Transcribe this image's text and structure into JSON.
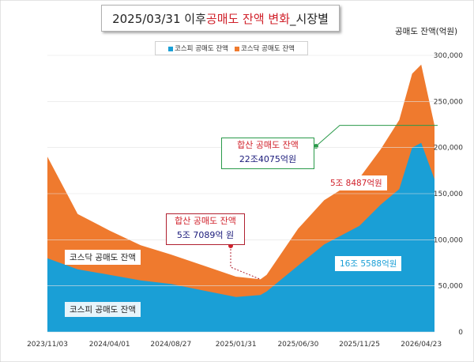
{
  "title": {
    "prefix": "2025/03/31 이후 ",
    "highlight": "공매도 잔액 변화",
    "suffix": "_시장별"
  },
  "unit_label": "공매도 잔액(억원)",
  "legend": [
    {
      "label": "코스피 공매도 잔액",
      "color": "#1a9fd6"
    },
    {
      "label": "코스닥 공매도 잔액",
      "color": "#ef7a2e"
    }
  ],
  "labels": {
    "kosdaq_area": "코스닥 공매도 잔액",
    "kospi_area": "코스피 공매도 잔액",
    "kosdaq_value": "5조 8487억원",
    "kospi_value": "16조 5588억원"
  },
  "callouts": [
    {
      "title": "합산 공매도 잔액",
      "value": "5조 7089억 원",
      "border": "#b02030"
    },
    {
      "title": "합산 공매도 잔액",
      "value": "22조4075억원",
      "border": "#2a9a4a"
    }
  ],
  "chart_data": {
    "type": "area",
    "stacked": true,
    "x_ticks": [
      "2023/11/03",
      "2024/04/01",
      "2024/08/27",
      "2025/01/31",
      "2025/06/30",
      "2025/11/25",
      "2026/04/23"
    ],
    "y_ticks": [
      "0",
      "50,000",
      "100,000",
      "150,000",
      "200,000",
      "250,000",
      "300,000"
    ],
    "ylim": [
      0,
      300000
    ],
    "reference_line": 224075,
    "series": [
      {
        "name": "코스피 공매도 잔액",
        "color": "#1a9fd6",
        "x": [
          "2023/11/03",
          "2024/01/15",
          "2024/04/01",
          "2024/06/15",
          "2024/08/27",
          "2024/11/01",
          "2025/01/31",
          "2025/03/31",
          "2025/04/15",
          "2025/06/30",
          "2025/09/01",
          "2025/11/25",
          "2026/01/15",
          "2026/03/01",
          "2026/04/01",
          "2026/04/23",
          "2026/05/25"
        ],
        "values": [
          80000,
          68000,
          62000,
          56000,
          52000,
          46000,
          38000,
          40000,
          44000,
          72000,
          95000,
          115000,
          138000,
          155000,
          200000,
          205000,
          165588
        ]
      },
      {
        "name": "코스닥 공매도 잔액",
        "color": "#ef7a2e",
        "x": [
          "2023/11/03",
          "2024/01/15",
          "2024/04/01",
          "2024/06/15",
          "2024/08/27",
          "2024/11/01",
          "2025/01/31",
          "2025/03/31",
          "2025/04/15",
          "2025/06/30",
          "2025/09/01",
          "2025/11/25",
          "2026/01/15",
          "2026/03/01",
          "2026/04/01",
          "2026/04/23",
          "2026/05/25"
        ],
        "values": [
          110000,
          60000,
          48000,
          38000,
          32000,
          28000,
          22000,
          17089,
          18000,
          40000,
          48000,
          52000,
          60000,
          75000,
          80000,
          85000,
          58487
        ]
      }
    ]
  }
}
